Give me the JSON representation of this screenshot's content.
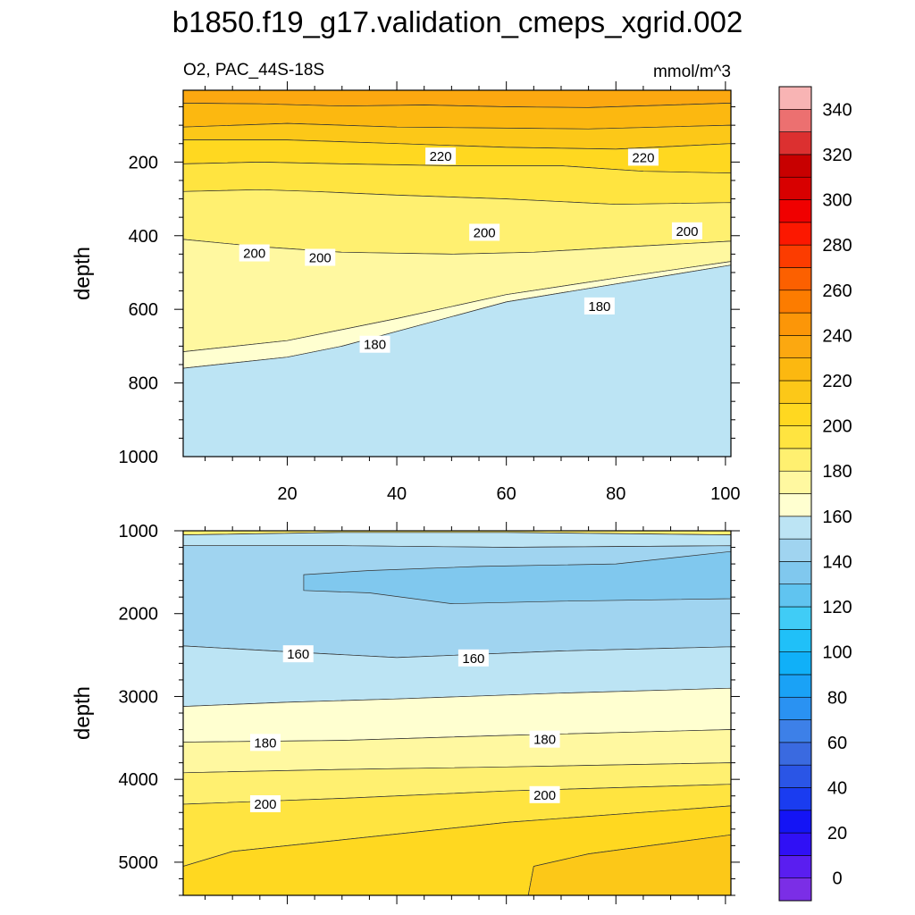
{
  "title": "b1850.f19_g17.validation_cmeps_xgrid.002",
  "subtitle_left": "O2, PAC_44S-18S",
  "units": "mmol/m^3",
  "colorbar": {
    "levels": [
      0,
      10,
      20,
      30,
      40,
      50,
      60,
      70,
      80,
      90,
      100,
      110,
      120,
      130,
      140,
      150,
      160,
      170,
      180,
      190,
      200,
      210,
      220,
      230,
      240,
      250,
      260,
      270,
      280,
      290,
      300,
      310,
      320,
      330,
      340,
      350
    ],
    "labels": [
      "0",
      "20",
      "40",
      "60",
      "80",
      "100",
      "120",
      "140",
      "160",
      "180",
      "200",
      "220",
      "240",
      "260",
      "280",
      "300",
      "320",
      "340"
    ],
    "colors": [
      "#7b2ee6",
      "#5a1ef0",
      "#3010f5",
      "#1414f5",
      "#1a3cf0",
      "#2a55e6",
      "#3a6ae0",
      "#3d80e8",
      "#2a92f2",
      "#1aa2f6",
      "#10b0f8",
      "#20c0f8",
      "#40ccf6",
      "#60c4f0",
      "#80c8ee",
      "#a0d4f0",
      "#bce4f4",
      "#ffffd0",
      "#fff8a0",
      "#fff070",
      "#ffe440",
      "#ffd820",
      "#fcc818",
      "#fcb810",
      "#fca810",
      "#fc9608",
      "#fc7c00",
      "#fc6000",
      "#fc3c00",
      "#fc1800",
      "#f00000",
      "#d80000",
      "#c80000",
      "#dc3030",
      "#ec7070",
      "#f8b4b4"
    ]
  },
  "chart_data": [
    {
      "type": "contour",
      "panel": "upper",
      "ylabel": "depth",
      "xlim": [
        1,
        101
      ],
      "ylim": [
        1000,
        5
      ],
      "x_ticks": [
        20,
        40,
        60,
        80,
        100
      ],
      "y_ticks": [
        200,
        400,
        600,
        800,
        1000
      ],
      "x_tick_labels": [
        "20",
        "40",
        "60",
        "80",
        "100"
      ],
      "y_tick_labels": [
        "200",
        "400",
        "600",
        "800",
        "1000"
      ],
      "bands": [
        {
          "color": "#fca810",
          "points": [
            [
              1,
              5
            ],
            [
              101,
              5
            ],
            [
              101,
              40
            ],
            [
              75,
              52
            ],
            [
              60,
              50
            ],
            [
              45,
              45
            ],
            [
              30,
              48
            ],
            [
              15,
              42
            ],
            [
              1,
              40
            ]
          ]
        },
        {
          "color": "#fcb810",
          "points": [
            [
              1,
              40
            ],
            [
              15,
              42
            ],
            [
              30,
              48
            ],
            [
              45,
              45
            ],
            [
              60,
              50
            ],
            [
              75,
              52
            ],
            [
              101,
              40
            ],
            [
              101,
              100
            ],
            [
              75,
              110
            ],
            [
              60,
              108
            ],
            [
              40,
              105
            ],
            [
              20,
              95
            ],
            [
              1,
              105
            ]
          ]
        },
        {
          "color": "#fcc818",
          "points": [
            [
              1,
              105
            ],
            [
              20,
              95
            ],
            [
              40,
              105
            ],
            [
              60,
              108
            ],
            [
              75,
              110
            ],
            [
              101,
              100
            ],
            [
              101,
              150
            ],
            [
              80,
              165
            ],
            [
              60,
              160
            ],
            [
              40,
              150
            ],
            [
              20,
              140
            ],
            [
              1,
              140
            ]
          ]
        },
        {
          "color": "#ffd820",
          "points": [
            [
              1,
              140
            ],
            [
              20,
              140
            ],
            [
              40,
              150
            ],
            [
              60,
              160
            ],
            [
              80,
              165
            ],
            [
              101,
              150
            ],
            [
              101,
              230
            ],
            [
              85,
              225
            ],
            [
              70,
              210
            ],
            [
              50,
              210
            ],
            [
              30,
              205
            ],
            [
              15,
              200
            ],
            [
              1,
              205
            ]
          ]
        },
        {
          "color": "#ffe440",
          "points": [
            [
              1,
              205
            ],
            [
              15,
              200
            ],
            [
              30,
              205
            ],
            [
              50,
              210
            ],
            [
              70,
              210
            ],
            [
              85,
              225
            ],
            [
              101,
              230
            ],
            [
              101,
              310
            ],
            [
              80,
              315
            ],
            [
              60,
              300
            ],
            [
              40,
              290
            ],
            [
              25,
              280
            ],
            [
              15,
              275
            ],
            [
              1,
              280
            ]
          ]
        },
        {
          "color": "#fff070",
          "points": [
            [
              1,
              280
            ],
            [
              15,
              275
            ],
            [
              25,
              280
            ],
            [
              40,
              290
            ],
            [
              60,
              300
            ],
            [
              80,
              315
            ],
            [
              101,
              310
            ],
            [
              101,
              415
            ],
            [
              80,
              432
            ],
            [
              65,
              445
            ],
            [
              50,
              450
            ],
            [
              30,
              445
            ],
            [
              15,
              430
            ],
            [
              1,
              410
            ]
          ]
        },
        {
          "color": "#fff8a0",
          "points": [
            [
              1,
              410
            ],
            [
              15,
              430
            ],
            [
              30,
              445
            ],
            [
              50,
              450
            ],
            [
              65,
              445
            ],
            [
              80,
              432
            ],
            [
              101,
              415
            ],
            [
              101,
              470
            ],
            [
              80,
              515
            ],
            [
              60,
              560
            ],
            [
              40,
              625
            ],
            [
              20,
              685
            ],
            [
              1,
              715
            ]
          ]
        },
        {
          "color": "#ffffd0",
          "points": [
            [
              1,
              715
            ],
            [
              20,
              685
            ],
            [
              40,
              625
            ],
            [
              60,
              560
            ],
            [
              80,
              515
            ],
            [
              101,
              470
            ],
            [
              101,
              480
            ],
            [
              60,
              580
            ],
            [
              30,
              700
            ],
            [
              20,
              730
            ],
            [
              1,
              760
            ]
          ]
        },
        {
          "color": "#bce4f4",
          "points": [
            [
              1,
              760
            ],
            [
              20,
              730
            ],
            [
              30,
              700
            ],
            [
              60,
              580
            ],
            [
              101,
              480
            ],
            [
              101,
              1000
            ],
            [
              1,
              1000
            ]
          ]
        }
      ],
      "contour_labels": [
        {
          "text": "220",
          "x": 48,
          "y": 185
        },
        {
          "text": "220",
          "x": 85,
          "y": 188
        },
        {
          "text": "200",
          "x": 14,
          "y": 448
        },
        {
          "text": "200",
          "x": 26,
          "y": 460
        },
        {
          "text": "200",
          "x": 56,
          "y": 392
        },
        {
          "text": "200",
          "x": 93,
          "y": 388
        },
        {
          "text": "180",
          "x": 77,
          "y": 592
        },
        {
          "text": "180",
          "x": 36,
          "y": 696
        }
      ]
    },
    {
      "type": "contour",
      "panel": "lower",
      "ylabel": "depth",
      "xlim": [
        1,
        101
      ],
      "ylim": [
        5400,
        1000
      ],
      "x_ticks": [
        20,
        40,
        60,
        80,
        100
      ],
      "y_ticks": [
        1000,
        2000,
        3000,
        4000,
        5000
      ],
      "y_tick_labels": [
        "1000",
        "2000",
        "3000",
        "4000",
        "5000"
      ],
      "bands": [
        {
          "color": "#fff070",
          "points": [
            [
              1,
              1000
            ],
            [
              101,
              1000
            ],
            [
              101,
              1050
            ],
            [
              60,
              1020
            ],
            [
              30,
              1020
            ],
            [
              1,
              1050
            ]
          ]
        },
        {
          "color": "#bce4f4",
          "points": [
            [
              1,
              1050
            ],
            [
              30,
              1020
            ],
            [
              60,
              1020
            ],
            [
              101,
              1050
            ],
            [
              101,
              1180
            ],
            [
              60,
              1200
            ],
            [
              30,
              1180
            ],
            [
              1,
              1180
            ]
          ]
        },
        {
          "color": "#a0d4f0",
          "points": [
            [
              1,
              1180
            ],
            [
              30,
              1180
            ],
            [
              60,
              1200
            ],
            [
              101,
              1180
            ],
            [
              101,
              2400
            ],
            [
              70,
              2450
            ],
            [
              40,
              2530
            ],
            [
              20,
              2460
            ],
            [
              1,
              2390
            ]
          ]
        },
        {
          "color": "#80c8ee",
          "points": [
            [
              23,
              1530
            ],
            [
              35,
              1480
            ],
            [
              55,
              1430
            ],
            [
              80,
              1400
            ],
            [
              101,
              1250
            ],
            [
              101,
              1820
            ],
            [
              70,
              1850
            ],
            [
              50,
              1880
            ],
            [
              35,
              1750
            ],
            [
              23,
              1720
            ]
          ]
        },
        {
          "color": "#bce4f4",
          "points": [
            [
              1,
              2390
            ],
            [
              20,
              2460
            ],
            [
              40,
              2530
            ],
            [
              70,
              2450
            ],
            [
              101,
              2400
            ],
            [
              101,
              2900
            ],
            [
              70,
              2960
            ],
            [
              40,
              3030
            ],
            [
              20,
              3070
            ],
            [
              1,
              3120
            ]
          ]
        },
        {
          "color": "#ffffd0",
          "points": [
            [
              1,
              3120
            ],
            [
              20,
              3070
            ],
            [
              40,
              3030
            ],
            [
              70,
              2960
            ],
            [
              101,
              2900
            ],
            [
              101,
              3400
            ],
            [
              60,
              3470
            ],
            [
              30,
              3530
            ],
            [
              1,
              3550
            ]
          ]
        },
        {
          "color": "#fff8a0",
          "points": [
            [
              1,
              3550
            ],
            [
              30,
              3530
            ],
            [
              60,
              3470
            ],
            [
              101,
              3400
            ],
            [
              101,
              3800
            ],
            [
              60,
              3850
            ],
            [
              30,
              3880
            ],
            [
              1,
              3920
            ]
          ]
        },
        {
          "color": "#fff070",
          "points": [
            [
              1,
              3920
            ],
            [
              30,
              3880
            ],
            [
              60,
              3850
            ],
            [
              101,
              3800
            ],
            [
              101,
              4060
            ],
            [
              60,
              4140
            ],
            [
              30,
              4230
            ],
            [
              1,
              4300
            ]
          ]
        },
        {
          "color": "#ffe440",
          "points": [
            [
              1,
              4300
            ],
            [
              30,
              4230
            ],
            [
              60,
              4140
            ],
            [
              101,
              4060
            ],
            [
              101,
              4320
            ],
            [
              60,
              4520
            ],
            [
              30,
              4730
            ],
            [
              10,
              4870
            ],
            [
              1,
              5050
            ]
          ]
        },
        {
          "color": "#ffd820",
          "points": [
            [
              1,
              5050
            ],
            [
              10,
              4870
            ],
            [
              30,
              4730
            ],
            [
              60,
              4520
            ],
            [
              101,
              4320
            ],
            [
              101,
              4670
            ],
            [
              75,
              4900
            ],
            [
              65,
              5050
            ],
            [
              64,
              5400
            ],
            [
              1,
              5400
            ]
          ]
        },
        {
          "color": "#fcc818",
          "points": [
            [
              65,
              5050
            ],
            [
              75,
              4900
            ],
            [
              101,
              4670
            ],
            [
              101,
              5400
            ],
            [
              64,
              5400
            ]
          ]
        }
      ],
      "contour_labels": [
        {
          "text": "160",
          "x": 22,
          "y": 2490
        },
        {
          "text": "160",
          "x": 54,
          "y": 2540
        },
        {
          "text": "180",
          "x": 16,
          "y": 3560
        },
        {
          "text": "180",
          "x": 67,
          "y": 3520
        },
        {
          "text": "200",
          "x": 16,
          "y": 4300
        },
        {
          "text": "200",
          "x": 67,
          "y": 4190
        }
      ]
    }
  ]
}
